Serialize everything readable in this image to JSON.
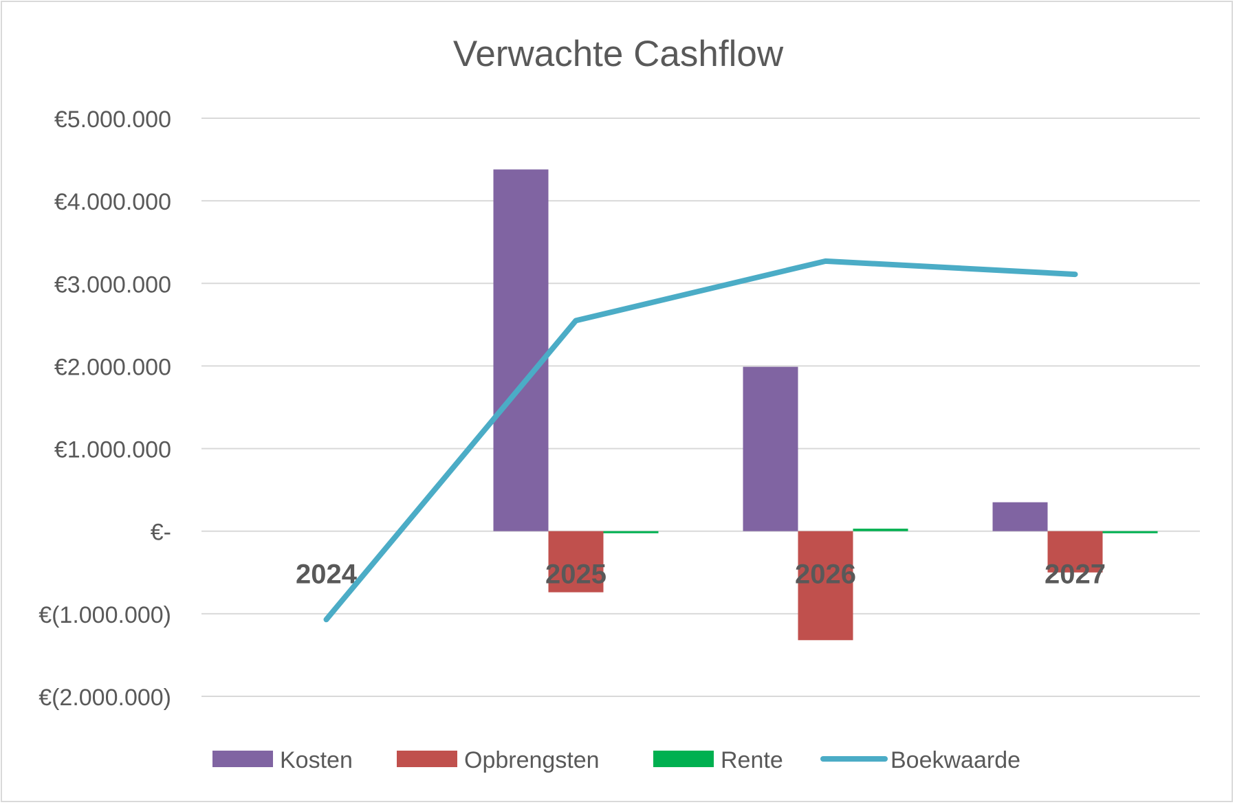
{
  "chart_data": {
    "type": "bar",
    "title": "Verwachte Cashflow",
    "categories": [
      "2024",
      "2025",
      "2026",
      "2027"
    ],
    "yticks": [
      "€(2.000.000)",
      "€(1.000.000)",
      "€-",
      "€1.000.000",
      "€2.000.000",
      "€3.000.000",
      "€4.000.000",
      "€5.000.000"
    ],
    "ylim": [
      -2000000,
      5000000
    ],
    "grid": true,
    "legend_position": "bottom",
    "series": [
      {
        "name": "Kosten",
        "kind": "bar",
        "color": "#8064a2",
        "values": [
          0,
          4380000,
          1990000,
          350000
        ]
      },
      {
        "name": "Opbrengsten",
        "kind": "bar",
        "color": "#c0504d",
        "values": [
          0,
          -740000,
          -1320000,
          -500000
        ]
      },
      {
        "name": "Rente",
        "kind": "bar",
        "color": "#00b050",
        "values": [
          0,
          -20000,
          30000,
          -10000
        ]
      },
      {
        "name": "Boekwaarde",
        "kind": "line",
        "color": "#4bacc6",
        "values": [
          -1070000,
          2550000,
          3270000,
          3110000
        ]
      }
    ]
  }
}
